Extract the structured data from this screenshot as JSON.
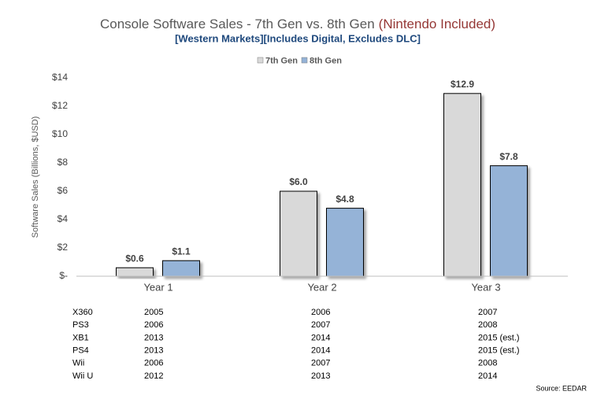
{
  "chart_data": {
    "type": "bar",
    "title": "Console Software Sales - 7th Gen vs. 8th Gen",
    "title_highlight": "(Nintendo Included)",
    "subtitle": "[Western Markets][Includes Digital, Excludes DLC]",
    "y_label": "Software Sales (Billions, $USD)",
    "categories": [
      "Year 1",
      "Year 2",
      "Year 3"
    ],
    "series": [
      {
        "name": "7th Gen",
        "color": "#d9d9d9",
        "values": [
          0.6,
          6.0,
          12.9
        ],
        "value_labels": [
          "$0.6",
          "$6.0",
          "$12.9"
        ]
      },
      {
        "name": "8th Gen",
        "color": "#95b3d7",
        "values": [
          1.1,
          4.8,
          7.8
        ],
        "value_labels": [
          "$1.1",
          "$4.8",
          "$7.8"
        ]
      }
    ],
    "ylim": [
      0,
      14
    ],
    "yticks": [
      {
        "value": 0,
        "label": "$-"
      },
      {
        "value": 2,
        "label": "$2"
      },
      {
        "value": 4,
        "label": "$4"
      },
      {
        "value": 6,
        "label": "$6"
      },
      {
        "value": 8,
        "label": "$8"
      },
      {
        "value": 10,
        "label": "$10"
      },
      {
        "value": 12,
        "label": "$12"
      },
      {
        "value": 14,
        "label": "$14"
      }
    ],
    "grid": false,
    "legend": "top",
    "source": "Source: EEDAR",
    "table": {
      "rows": [
        [
          "X360",
          "2005",
          "2006",
          "2007"
        ],
        [
          "PS3",
          "2006",
          "2007",
          "2008"
        ],
        [
          "XB1",
          "2013",
          "2014",
          "2015 (est.)"
        ],
        [
          "PS4",
          "2013",
          "2014",
          "2015 (est.)"
        ],
        [
          "Wii",
          "2006",
          "2007",
          "2008"
        ],
        [
          "Wii U",
          "2012",
          "2013",
          "2014"
        ]
      ]
    }
  }
}
